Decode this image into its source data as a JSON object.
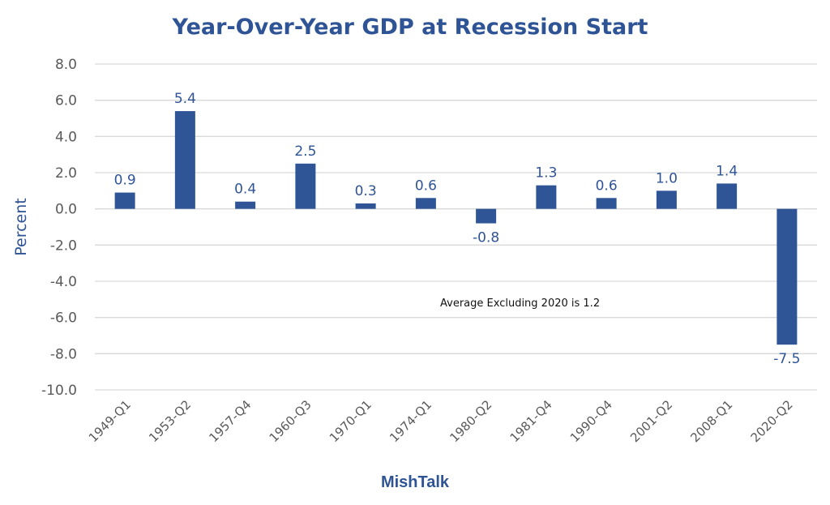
{
  "chart_data": {
    "type": "bar",
    "title": "Year-Over-Year GDP at Recession Start",
    "xlabel": "MishTalk",
    "ylabel": "Percent",
    "ylim": [
      -10.0,
      8.0
    ],
    "ytick_step": 2.0,
    "yticks": [
      "8.0",
      "6.0",
      "4.0",
      "2.0",
      "0.0",
      "-2.0",
      "-4.0",
      "-6.0",
      "-8.0",
      "-10.0"
    ],
    "grid": true,
    "legend": "none",
    "categories": [
      "1949-Q1",
      "1953-Q2",
      "1957-Q4",
      "1960-Q3",
      "1970-Q1",
      "1974-Q1",
      "1980-Q2",
      "1981-Q4",
      "1990-Q4",
      "2001-Q2",
      "2008-Q1",
      "2020-Q2"
    ],
    "values": [
      0.9,
      5.4,
      0.4,
      2.5,
      0.3,
      0.6,
      -0.8,
      1.3,
      0.6,
      1.0,
      1.4,
      -7.5
    ],
    "data_labels": [
      "0.9",
      "5.4",
      "0.4",
      "2.5",
      "0.3",
      "0.6",
      "-0.8",
      "1.3",
      "0.6",
      "1.0",
      "1.4",
      "-7.5"
    ],
    "annotation": "Average Excluding 2020 is 1.2",
    "colors": {
      "bar": "#2f5597",
      "title": "#2f5496",
      "label": "#2f5496",
      "tick": "#595959",
      "grid": "#d9d9d9"
    }
  }
}
